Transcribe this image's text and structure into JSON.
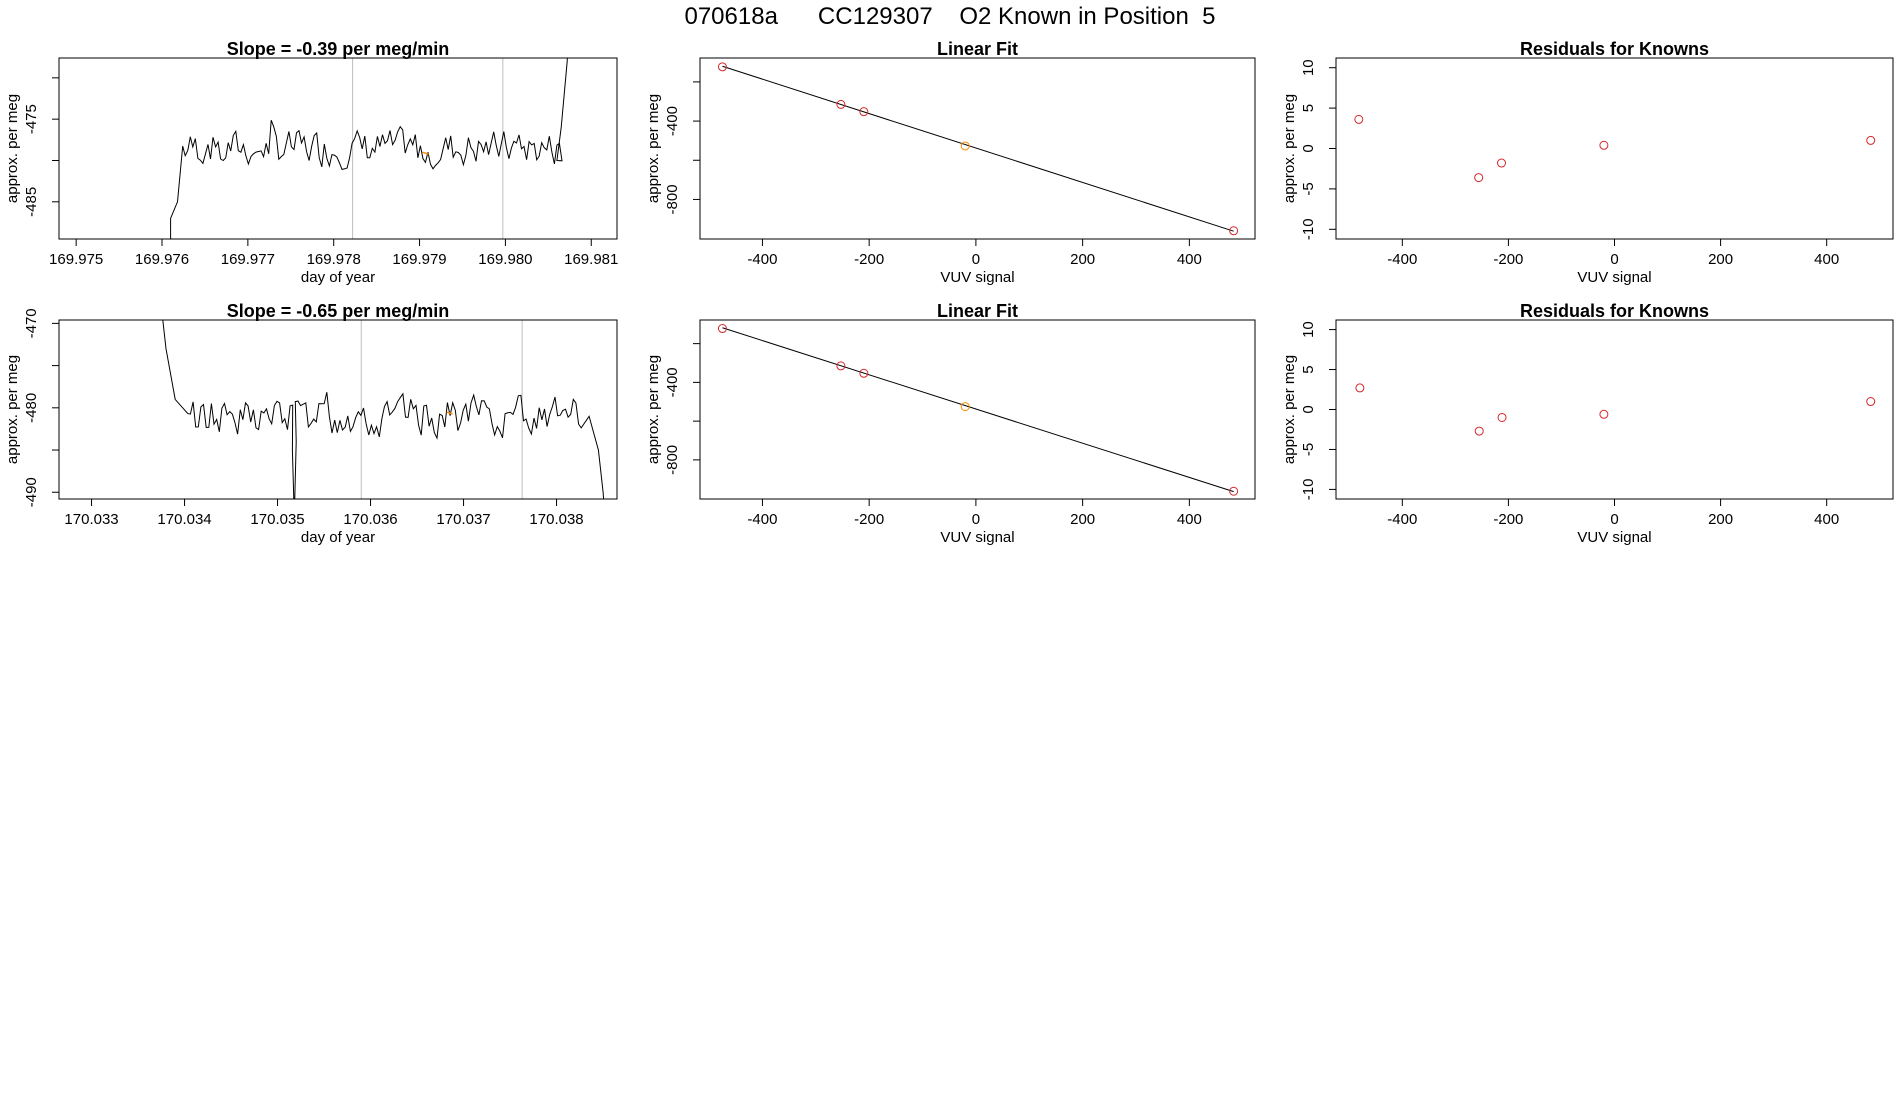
{
  "page_title": "070618a      CC129307    O2 Known in Position  5",
  "colors": {
    "line": "#000000",
    "grid": "#bebebe",
    "point": "#d62728",
    "highlight": "#ff8c00"
  },
  "chart_data": [
    {
      "id": "ts1",
      "type": "line",
      "title": "Slope =  -0.39  per meg/min",
      "xlabel": "day of year",
      "ylabel": "approx. per meg",
      "xlim": [
        169.9748,
        169.9813
      ],
      "ylim": [
        -489.5,
        -467.6
      ],
      "xticks": [
        169.975,
        169.976,
        169.977,
        169.978,
        169.979,
        169.98,
        169.981
      ],
      "xtick_labels": [
        "169.975",
        "169.976",
        "169.977",
        "169.978",
        "169.979",
        "169.980",
        "169.981"
      ],
      "yticks": [
        -470,
        -475,
        -480,
        -485
      ],
      "ytick_labels": [
        "",
        "-475",
        "",
        "-485"
      ],
      "vlines": [
        169.97822,
        169.97997
      ],
      "start": 169.9761,
      "end": 169.9808,
      "base": -478.5,
      "amp": 3.0,
      "seed": 7,
      "lead_in": [
        [
          169.9761,
          -492
        ],
        [
          169.9761,
          -487
        ],
        [
          169.97618,
          -485
        ]
      ],
      "tail": [
        [
          169.9806,
          -480
        ],
        [
          169.98065,
          -476
        ],
        [
          169.98072,
          -468
        ],
        [
          169.98074,
          -462
        ]
      ],
      "highlight": [
        169.97907,
        -479
      ]
    },
    {
      "id": "ts2",
      "type": "line",
      "title": "Slope =  -0.65  per meg/min",
      "xlabel": "day of year",
      "ylabel": "approx. per meg",
      "xlim": [
        170.03265,
        170.03865
      ],
      "ylim": [
        -490.8,
        -469.6
      ],
      "xticks": [
        170.033,
        170.034,
        170.035,
        170.036,
        170.037,
        170.038
      ],
      "xtick_labels": [
        "170.033",
        "170.034",
        "170.035",
        "170.036",
        "170.037",
        "170.038"
      ],
      "yticks": [
        -470,
        -475,
        -480,
        -485,
        -490
      ],
      "ytick_labels": [
        "-470",
        "",
        "-480",
        "",
        "-490"
      ],
      "vlines": [
        170.0359,
        170.03763
      ],
      "start": 170.0339,
      "end": 170.0384,
      "base": -481.0,
      "amp": 3.2,
      "seed": 13,
      "lead_in": [
        [
          170.03375,
          -468
        ],
        [
          170.0338,
          -473
        ],
        [
          170.0339,
          -479
        ]
      ],
      "tail": [
        [
          170.03835,
          -481
        ],
        [
          170.03845,
          -485
        ],
        [
          170.0385,
          -490
        ],
        [
          170.03852,
          -493
        ]
      ],
      "highlight": [
        170.03685,
        -480.5
      ],
      "dip": [
        170.03518,
        -493
      ]
    },
    {
      "id": "fit1",
      "type": "scatter",
      "title": "Linear Fit",
      "xlabel": "VUV signal",
      "ylabel": "approx. per meg",
      "xlim": [
        -517,
        523
      ],
      "ylim": [
        -1002,
        -78
      ],
      "xticks": [
        -400,
        -200,
        0,
        200,
        400
      ],
      "xtick_labels": [
        "-400",
        "-200",
        "0",
        "200",
        "400"
      ],
      "yticks": [
        -200,
        -400,
        -600,
        -800
      ],
      "ytick_labels": [
        "",
        "-400",
        "",
        "-800"
      ],
      "points": [
        [
          -475,
          -123
        ],
        [
          -253,
          -315
        ],
        [
          -210,
          -352
        ],
        [
          -20,
          -527
        ],
        [
          483,
          -960
        ]
      ],
      "highlight_index": 3,
      "fit_line": [
        [
          -475,
          -120
        ],
        [
          483,
          -962
        ]
      ]
    },
    {
      "id": "res1",
      "type": "scatter",
      "title": "Residuals for Knowns",
      "xlabel": "VUV signal",
      "ylabel": "approx. per meg",
      "xlim": [
        -525,
        525
      ],
      "ylim": [
        -11.2,
        11.2
      ],
      "xticks": [
        -400,
        -200,
        0,
        200,
        400
      ],
      "xtick_labels": [
        "-400",
        "-200",
        "0",
        "200",
        "400"
      ],
      "yticks": [
        10,
        5,
        0,
        -5,
        -10
      ],
      "ytick_labels": [
        "10",
        "5",
        "0",
        "-5",
        "-10"
      ],
      "points": [
        [
          -482,
          3.6
        ],
        [
          -256,
          -3.6
        ],
        [
          -213,
          -1.8
        ],
        [
          -20,
          0.4
        ],
        [
          483,
          1.0
        ]
      ]
    },
    {
      "id": "fit2",
      "type": "scatter",
      "title": "Linear Fit",
      "xlabel": "VUV signal",
      "ylabel": "approx. per meg",
      "xlim": [
        -517,
        523
      ],
      "ylim": [
        -1002,
        -78
      ],
      "xticks": [
        -400,
        -200,
        0,
        200,
        400
      ],
      "xtick_labels": [
        "-400",
        "-200",
        "0",
        "200",
        "400"
      ],
      "yticks": [
        -200,
        -400,
        -600,
        -800
      ],
      "ytick_labels": [
        "",
        "-400",
        "",
        "-800"
      ],
      "points": [
        [
          -475,
          -122
        ],
        [
          -253,
          -315
        ],
        [
          -210,
          -353
        ],
        [
          -20,
          -525
        ],
        [
          483,
          -962
        ]
      ],
      "highlight_index": 3,
      "fit_line": [
        [
          -475,
          -118
        ],
        [
          483,
          -964
        ]
      ]
    },
    {
      "id": "res2",
      "type": "scatter",
      "title": "Residuals for Knowns",
      "xlabel": "VUV signal",
      "ylabel": "approx. per meg",
      "xlim": [
        -525,
        525
      ],
      "ylim": [
        -11.2,
        11.2
      ],
      "xticks": [
        -400,
        -200,
        0,
        200,
        400
      ],
      "xtick_labels": [
        "-400",
        "-200",
        "0",
        "200",
        "400"
      ],
      "yticks": [
        10,
        5,
        0,
        -5,
        -10
      ],
      "ytick_labels": [
        "10",
        "5",
        "0",
        "-5",
        "-10"
      ],
      "points": [
        [
          -480,
          2.7
        ],
        [
          -255,
          -2.7
        ],
        [
          -212,
          -1.0
        ],
        [
          -20,
          -0.6
        ],
        [
          483,
          1.0
        ]
      ]
    }
  ]
}
